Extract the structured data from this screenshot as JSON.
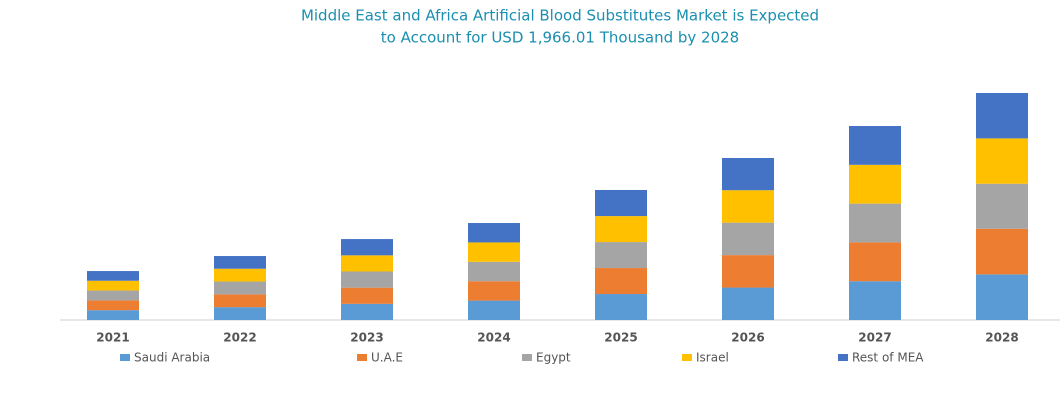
{
  "chart_data": {
    "type": "stacked_bar",
    "title": [
      "Middle East and Africa Artificial Blood Substitutes Market is Expected",
      "to Account for USD 1,966.01 Thousand by 2028"
    ],
    "categories": [
      "2021",
      "2022",
      "2023",
      "2024",
      "2025",
      "2026",
      "2027",
      "2028"
    ],
    "series": [
      {
        "name": "Saudi Arabia",
        "color": "#5b9bd5",
        "values": [
          85,
          111,
          140,
          168,
          225,
          281,
          336,
          395
        ]
      },
      {
        "name": "U.A.E",
        "color": "#ed7d31",
        "values": [
          85,
          111,
          140,
          168,
          225,
          281,
          336,
          395
        ]
      },
      {
        "name": "Egypt",
        "color": "#a5a5a5",
        "values": [
          85,
          111,
          140,
          168,
          225,
          281,
          336,
          390
        ]
      },
      {
        "name": "Israel",
        "color": "#ffc000",
        "values": [
          85,
          111,
          140,
          168,
          225,
          281,
          336,
          393
        ]
      },
      {
        "name": "Rest of MEA",
        "color": "#4472c4",
        "values": [
          84,
          110,
          141,
          168,
          226,
          279,
          336,
          393
        ]
      }
    ]
  }
}
